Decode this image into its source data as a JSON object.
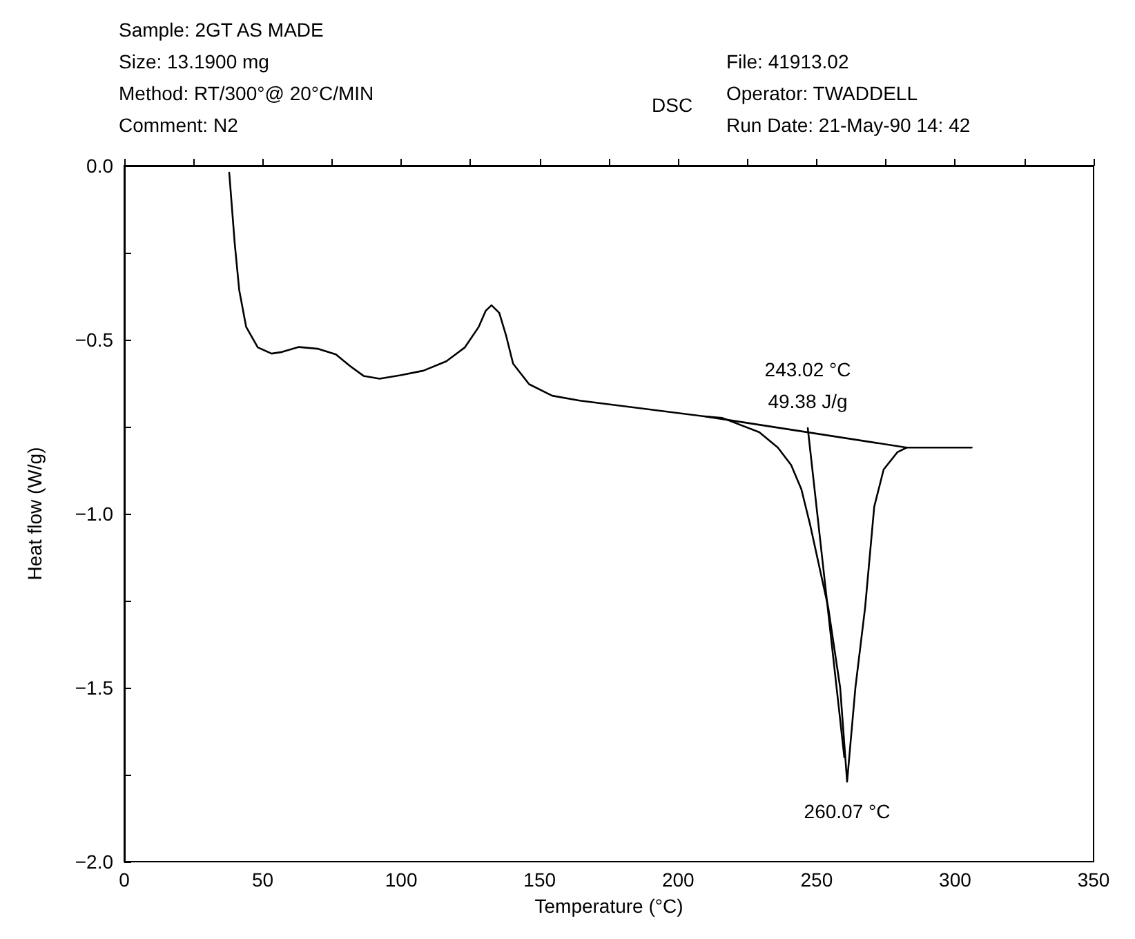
{
  "chart_data": {
    "type": "line",
    "title": "DSC",
    "xlabel": "Temperature (°C)",
    "ylabel": "Heat flow (W/g)",
    "annotations": [
      "Sample: 2GT AS MADE\nSize: 13.1900 mg\nMethod: RT/300°@ 20°C/MIN\nComment: N2",
      "File: 41913.02\nOperator: TWADDELL\nRun Date: 21-May-90 14: 42",
      {
        "text": "243.02 °C\n49.38 J/g",
        "x": 246.8,
        "y": -0.754
      },
      {
        "text": "260.07 °C",
        "x": 261,
        "y": -1.77
      }
    ],
    "marker": "none",
    "line_style": "solid",
    "series": [
      {
        "color": "#000000",
        "x": [
          37.9,
          39.9,
          41.5,
          44,
          48.2,
          53.2,
          56.5,
          63.1,
          69.8,
          76.4,
          81.4,
          86.4,
          92.2,
          99.7,
          108,
          116.3,
          123,
          128,
          130.5,
          132.6,
          135.4,
          137.9,
          140.4,
          146.2,
          154.5,
          164.5,
          210.2,
          216,
          229.3,
          236,
          240.8,
          244.5,
          247.6,
          254.2,
          258.5,
          261,
          264,
          267.5,
          270.8,
          274.2,
          279.2,
          282.5,
          306
        ],
        "values": [
          -0.02,
          -0.225,
          -0.357,
          -0.463,
          -0.522,
          -0.54,
          -0.536,
          -0.521,
          -0.526,
          -0.542,
          -0.575,
          -0.604,
          -0.612,
          -0.602,
          -0.589,
          -0.562,
          -0.522,
          -0.463,
          -0.417,
          -0.401,
          -0.423,
          -0.489,
          -0.569,
          -0.628,
          -0.661,
          -0.675,
          -0.721,
          -0.725,
          -0.766,
          -0.81,
          -0.86,
          -0.93,
          -1.03,
          -1.27,
          -1.5,
          -1.77,
          -1.5,
          -1.27,
          -0.98,
          -0.873,
          -0.823,
          -0.81,
          -0.81
        ]
      },
      {
        "color": "#000000",
        "x": [
          210.2,
          282.5
        ],
        "values": [
          -0.721,
          -0.81
        ]
      },
      {
        "color": "#000000",
        "x": [
          246.8,
          260
        ],
        "values": [
          -0.754,
          -1.7
        ]
      }
    ],
    "xlim": [
      0,
      350
    ],
    "xticks": [
      0,
      {
        "value": 25,
        "label": null
      },
      50,
      {
        "value": 75,
        "label": null
      },
      100,
      {
        "value": 125,
        "label": null
      },
      150,
      {
        "value": 175,
        "label": null
      },
      200,
      {
        "value": 225,
        "label": null
      },
      250,
      {
        "value": 275,
        "label": null
      },
      300,
      {
        "value": 325,
        "label": null
      },
      350
    ],
    "ylim": [
      -2,
      0
    ],
    "yticks": [
      {
        "value": -2,
        "label": "−2.0"
      },
      {
        "value": -1.75,
        "label": null
      },
      {
        "value": -1.5,
        "label": "−1.5"
      },
      {
        "value": -1.25,
        "label": null
      },
      {
        "value": -1,
        "label": "−1.0"
      },
      {
        "value": -0.75,
        "label": null
      },
      {
        "value": -0.5,
        "label": "−0.5"
      },
      {
        "value": -0.25,
        "label": null
      },
      {
        "value": 0,
        "label": "0.0"
      }
    ]
  }
}
